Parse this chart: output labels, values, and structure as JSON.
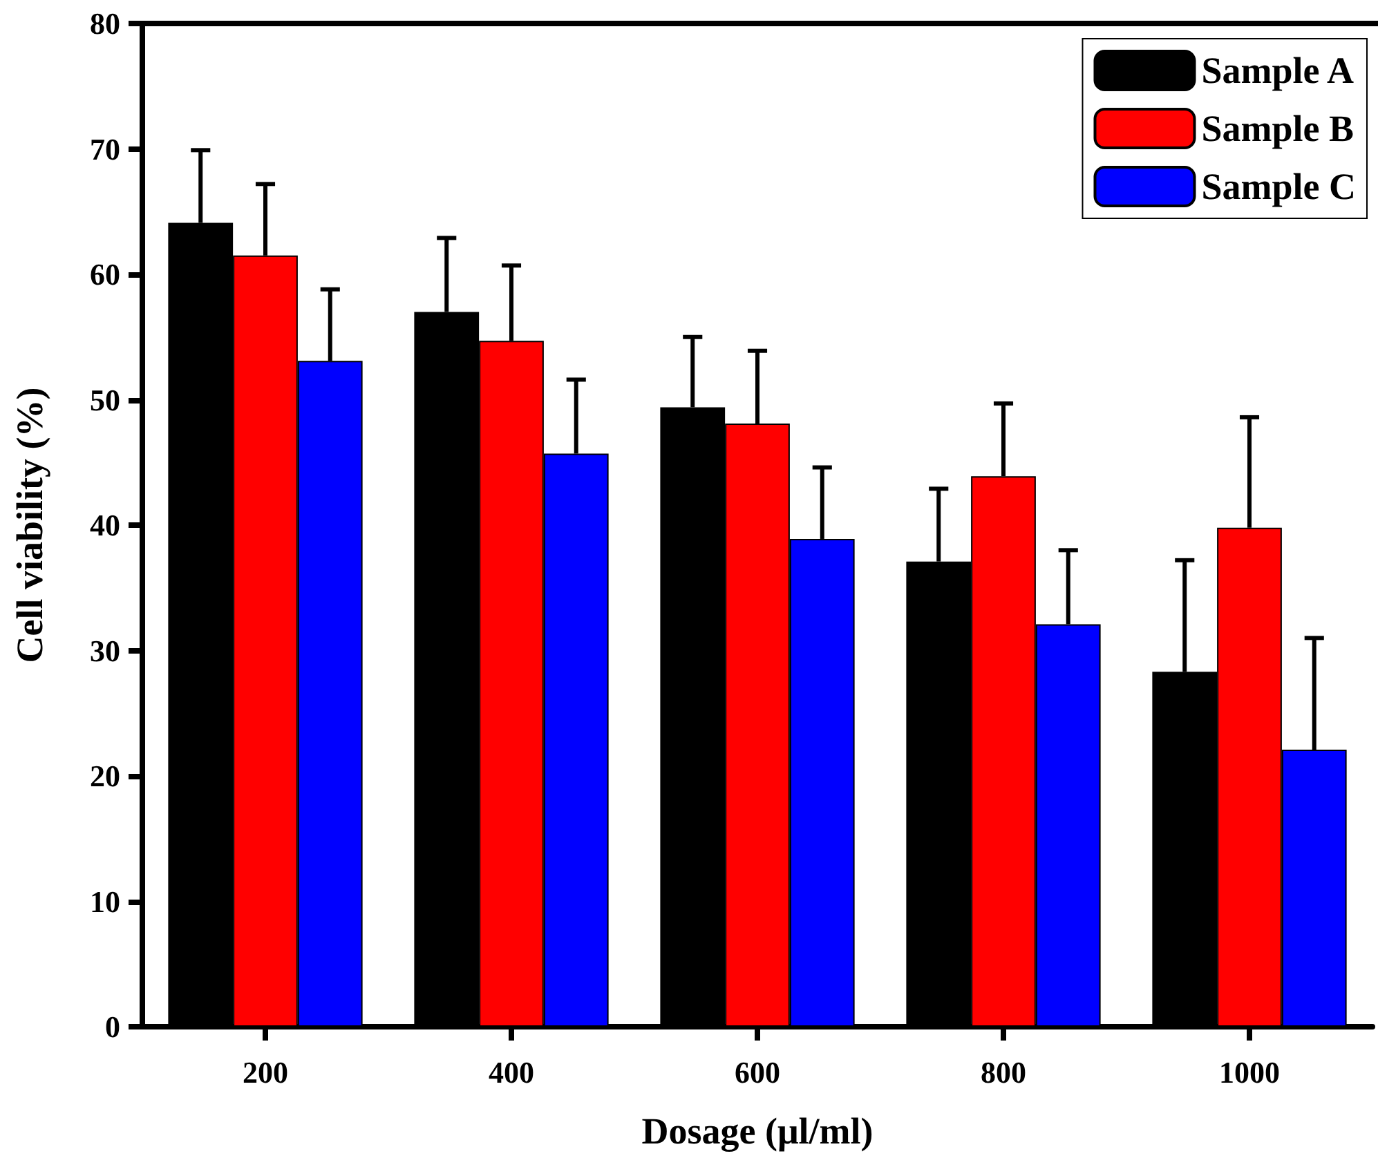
{
  "chart_data": {
    "type": "bar",
    "xlabel": "Dosage (μl/ml)",
    "ylabel": "Cell viability (%)",
    "categories": [
      "200",
      "400",
      "600",
      "800",
      "1000"
    ],
    "series": [
      {
        "name": "Sample A",
        "color": "#000000",
        "values": [
          64.1,
          57.0,
          49.4,
          37.1,
          28.3
        ],
        "errors": [
          [
            64.1,
            69.9
          ],
          [
            57.0,
            62.9
          ],
          [
            49.4,
            55.0
          ],
          [
            37.1,
            42.9
          ],
          [
            28.3,
            37.2
          ]
        ]
      },
      {
        "name": "Sample B",
        "color": "#ff0000",
        "values": [
          61.5,
          54.7,
          48.1,
          43.9,
          39.8
        ],
        "errors": [
          [
            61.5,
            67.2
          ],
          [
            54.7,
            60.7
          ],
          [
            48.1,
            53.9
          ],
          [
            43.9,
            49.7
          ],
          [
            39.8,
            48.6
          ]
        ]
      },
      {
        "name": "Sample C",
        "color": "#0000ff",
        "values": [
          53.1,
          45.7,
          38.9,
          32.1,
          22.1
        ],
        "errors": [
          [
            53.1,
            58.8
          ],
          [
            45.7,
            51.6
          ],
          [
            38.9,
            44.6
          ],
          [
            32.1,
            38.0
          ],
          [
            22.1,
            31.0
          ]
        ]
      }
    ],
    "ylim": [
      0,
      80
    ],
    "yticks": [
      0,
      10,
      20,
      30,
      40,
      50,
      60,
      70,
      80
    ],
    "grid": false,
    "legend": "top right"
  }
}
